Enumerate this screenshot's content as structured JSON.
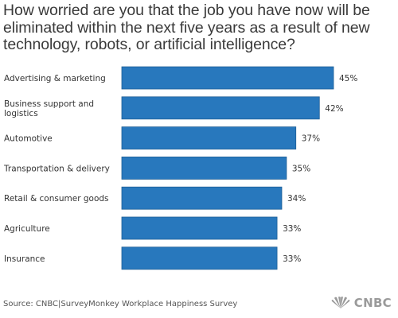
{
  "title": "How worried are you that the job you have now will be eliminated within the next five years as a result of new technology, robots, or artificial intelligence?",
  "source": "Source: CNBC|SurveyMonkey Workplace Happiness Survey",
  "logo": {
    "text": "CNBC",
    "icon": "nbc-peacock-icon"
  },
  "colors": {
    "bar": "#2878bd",
    "bar_border": "#1f5f96"
  },
  "chart_data": {
    "type": "bar",
    "orientation": "horizontal",
    "title": "How worried are you that the job you have now will be eliminated within the next five years as a result of new technology, robots, or artificial intelligence?",
    "categories": [
      [
        "Advertising & marketing"
      ],
      [
        "Business support and",
        "logistics"
      ],
      [
        "Automotive"
      ],
      [
        "Transportation & delivery"
      ],
      [
        "Retail & consumer goods"
      ],
      [
        "Agriculture"
      ],
      [
        "Insurance"
      ]
    ],
    "values": [
      45,
      42,
      37,
      35,
      34,
      33,
      33
    ],
    "value_labels": [
      "45%",
      "42%",
      "37%",
      "35%",
      "34%",
      "33%",
      "33%"
    ],
    "xlim": [
      0,
      45
    ],
    "grid": false,
    "axes_visible": false
  }
}
